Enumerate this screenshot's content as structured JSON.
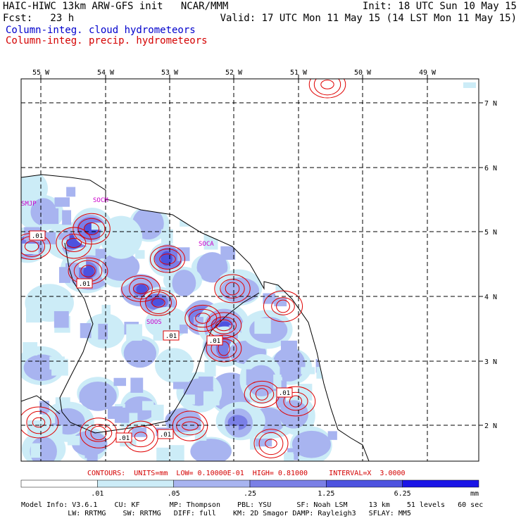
{
  "header": {
    "line1_left": "HAIC-HIWC 13km ARW-GFS init   NCAR/MMM",
    "line1_right": "Init: 18 UTC Sun 10 May 15",
    "line2_left": "Fcst:   23 h",
    "line2_right": "Valid: 17 UTC Mon 11 May 15 (14 LST Mon 11 May 15)",
    "field1": "Column-integ. cloud hydrometeors",
    "field2": "Column-integ. precip. hydrometeors"
  },
  "colors": {
    "cloud_label": "#0000cc",
    "precip_label": "#d40000",
    "scale": [
      "#ffffff",
      "#ccecf7",
      "#a8b4f0",
      "#7a7fe6",
      "#4d52df",
      "#1a14e6"
    ],
    "contour": "#e00000"
  },
  "chart_data": {
    "type": "heatmap",
    "x_ticks": [
      "55 W",
      "54 W",
      "53 W",
      "52 W",
      "51 W",
      "50 W",
      "49 W"
    ],
    "y_ticks": [
      "7 N",
      "6 N",
      "5 N",
      "4 N",
      "3 N",
      "2 N"
    ],
    "station_labels": [
      "SMJP",
      "SOCM",
      "SOCA",
      "SOOS"
    ],
    "contour_labels": [
      ".01",
      ".01",
      ".01",
      ".01",
      ".01",
      ".01",
      ".01"
    ],
    "contour_info": "CONTOURS:  UNITS=mm  LOW= 0.10000E-01  HIGH= 0.81000     INTERVAL=X  3.0000",
    "colorbar": {
      "tick_labels": [
        ".01",
        ".05",
        ".25",
        "1.25",
        "6.25"
      ],
      "unit": "mm"
    }
  },
  "footer": {
    "line1": "Model Info: V3.6.1    CU: KF       MP: Thompson    PBL: YSU      SF: Noah LSM     13 km    51 levels   60 sec",
    "line2": "           LW: RRTMG    SW: RRTMG   DIFF: full    KM: 2D Smagor DAMP: Rayleigh3   SFLAY: MM5"
  }
}
